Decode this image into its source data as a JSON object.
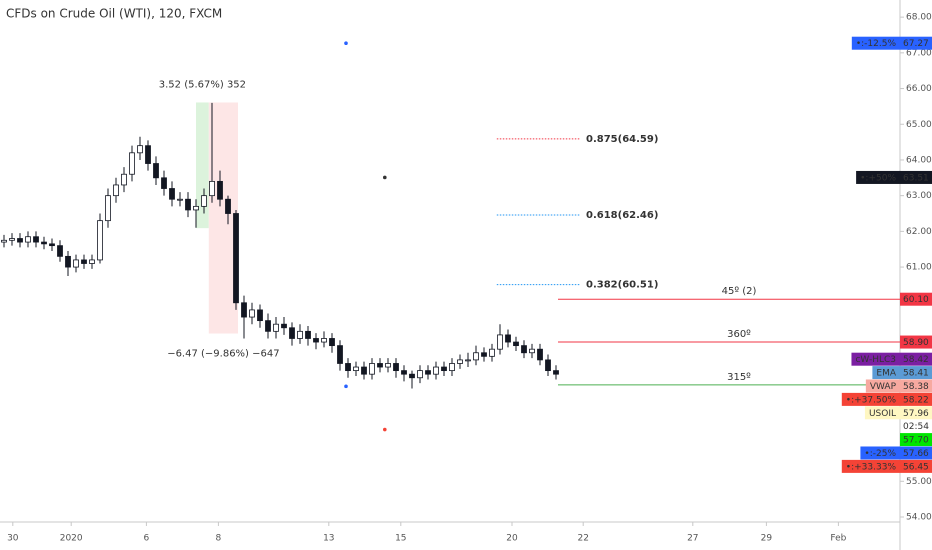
{
  "chart_data": {
    "type": "candlestick",
    "title": "CFDs on Crude Oil (WTI), 120, FXCM",
    "open": [
      61.7,
      61.75,
      61.8,
      61.7,
      61.85,
      61.7,
      61.65,
      61.6,
      61.3,
      61.0,
      61.2,
      61.1,
      61.2,
      62.3,
      63.0,
      63.3,
      63.6,
      64.2,
      64.4,
      63.9,
      63.5,
      63.2,
      62.9,
      62.9,
      62.6,
      62.7,
      63.0,
      63.4,
      62.9,
      62.5,
      60.0,
      59.6,
      59.8,
      59.5,
      59.2,
      59.4,
      59.3,
      59.0,
      59.2,
      59.0,
      58.9,
      59.0,
      58.8,
      58.3,
      58.1,
      58.2,
      58.0,
      58.3,
      58.2,
      58.3,
      58.1,
      58.0,
      57.9,
      58.1,
      58.0,
      58.2,
      58.1,
      58.3,
      58.4,
      58.4,
      58.6,
      58.5,
      58.7,
      59.1,
      58.9,
      58.8,
      58.6,
      58.7,
      58.4,
      58.1
    ],
    "high": [
      61.9,
      61.95,
      61.95,
      62.0,
      62.0,
      61.85,
      61.8,
      61.75,
      61.45,
      61.35,
      61.35,
      61.35,
      62.5,
      63.2,
      63.5,
      63.8,
      64.4,
      64.65,
      64.55,
      64.1,
      63.7,
      63.4,
      63.1,
      63.1,
      62.9,
      63.2,
      65.6,
      63.7,
      63.0,
      62.6,
      60.2,
      60.0,
      59.95,
      59.7,
      59.6,
      59.6,
      59.45,
      59.4,
      59.35,
      59.15,
      59.2,
      59.15,
      58.95,
      58.45,
      58.35,
      58.35,
      58.45,
      58.45,
      58.45,
      58.45,
      58.25,
      58.1,
      58.25,
      58.25,
      58.35,
      58.35,
      58.45,
      58.55,
      58.6,
      58.8,
      58.75,
      58.85,
      59.4,
      59.25,
      59.05,
      58.95,
      58.85,
      58.85,
      58.55,
      58.25
    ],
    "low": [
      61.55,
      61.6,
      61.55,
      61.55,
      61.55,
      61.5,
      61.45,
      61.15,
      60.75,
      60.85,
      60.95,
      60.95,
      61.1,
      62.1,
      62.8,
      63.1,
      63.4,
      64.0,
      63.7,
      63.3,
      63.0,
      62.7,
      62.7,
      62.4,
      62.1,
      62.5,
      62.8,
      62.7,
      62.2,
      59.8,
      59.0,
      59.4,
      59.3,
      59.0,
      59.0,
      59.1,
      58.8,
      58.85,
      58.8,
      58.7,
      58.75,
      58.6,
      58.1,
      57.9,
      57.95,
      57.85,
      57.85,
      58.05,
      58.05,
      57.9,
      57.8,
      57.6,
      57.75,
      57.85,
      57.85,
      57.95,
      57.95,
      58.15,
      58.2,
      58.25,
      58.35,
      58.35,
      58.55,
      58.75,
      58.65,
      58.45,
      58.45,
      58.25,
      57.95,
      57.85
    ],
    "close": [
      61.75,
      61.8,
      61.7,
      61.85,
      61.7,
      61.65,
      61.6,
      61.3,
      61.0,
      61.2,
      61.1,
      61.2,
      62.3,
      63.0,
      63.3,
      63.6,
      64.2,
      64.4,
      63.9,
      63.5,
      63.2,
      62.9,
      62.9,
      62.6,
      62.7,
      63.0,
      63.4,
      62.9,
      62.5,
      60.0,
      59.6,
      59.8,
      59.5,
      59.2,
      59.4,
      59.3,
      59.0,
      59.2,
      59.0,
      58.9,
      59.0,
      58.8,
      58.3,
      58.1,
      58.2,
      58.0,
      58.3,
      58.2,
      58.3,
      58.1,
      58.0,
      57.9,
      58.1,
      58.0,
      58.2,
      58.1,
      58.3,
      58.4,
      58.4,
      58.6,
      58.5,
      58.7,
      59.1,
      58.9,
      58.8,
      58.6,
      58.7,
      58.4,
      58.1,
      58.0
    ],
    "xlim": [
      -0.5,
      112
    ],
    "xticks": [
      {
        "value": 1.1,
        "label": "30"
      },
      {
        "value": 8.4,
        "label": "2020"
      },
      {
        "value": 17.8,
        "label": "6"
      },
      {
        "value": 26.8,
        "label": "8"
      },
      {
        "value": 40.6,
        "label": "13"
      },
      {
        "value": 49.6,
        "label": "15"
      },
      {
        "value": 63.5,
        "label": "20"
      },
      {
        "value": 72.4,
        "label": "22"
      },
      {
        "value": 86.1,
        "label": "27"
      },
      {
        "value": 95.3,
        "label": "29"
      },
      {
        "value": 104.3,
        "label": "Feb"
      }
    ],
    "ylim": [
      53.86,
      68.48
    ],
    "yticks": [
      {
        "value": 68,
        "label": "68.00"
      },
      {
        "value": 67,
        "label": "67.00"
      },
      {
        "value": 66,
        "label": "66.00"
      },
      {
        "value": 65,
        "label": "65.00"
      },
      {
        "value": 64,
        "label": "64.00"
      },
      {
        "value": 63,
        "label": "63.00"
      },
      {
        "value": 62,
        "label": "62.00"
      },
      {
        "value": 61,
        "label": "61.00"
      },
      {
        "value": 55,
        "label": "55.00"
      },
      {
        "value": 54,
        "label": "54.00"
      }
    ],
    "ranges": [
      {
        "label": "3.52 (5.67%) 352",
        "x": [
          24,
          25.6
        ],
        "from": 62.09,
        "to": 65.61,
        "color": "#dcf3dc"
      },
      {
        "label": "−6.47 (−9.86%) −647",
        "x": [
          25.6,
          29.25
        ],
        "from": 65.61,
        "to": 59.14,
        "color": "#fde6e6"
      }
    ],
    "fib_levels": [
      {
        "label": "0.875(64.59)",
        "value": 64.59,
        "color": "#f23645",
        "x": [
          61.6,
          72
        ]
      },
      {
        "label": "0.618(62.46)",
        "value": 62.46,
        "color": "#2196f3",
        "x": [
          61.6,
          72
        ]
      },
      {
        "label": "0.382(60.51)",
        "value": 60.51,
        "color": "#2196f3",
        "x": [
          61.6,
          72
        ]
      }
    ],
    "levels": [
      {
        "label": "45º (2)",
        "value": 60.1,
        "color": "#f23645",
        "x_start": 69.25
      },
      {
        "label": "360º",
        "value": 58.9,
        "color": "#f23645",
        "x_start": 69.25
      },
      {
        "label": "315º",
        "value": 57.7,
        "color": "#4caf50",
        "x_start": 69.25
      }
    ],
    "points": [
      {
        "x": 42.75,
        "y": 67.27,
        "color": "#2962ff"
      },
      {
        "x": 47.6,
        "y": 63.51,
        "color": "#333333"
      },
      {
        "x": 42.75,
        "y": 57.66,
        "color": "#2962ff"
      },
      {
        "x": 47.6,
        "y": 56.45,
        "color": "#f44336"
      }
    ],
    "price_labels": [
      {
        "name": "•:-12.5%",
        "value": 67.27,
        "label": "67.27",
        "bg": "#2962ff",
        "fg": "#ffffff"
      },
      {
        "name": "•:+50%",
        "value": 63.51,
        "label": "63.51",
        "bg": "#131722",
        "fg": "#ffffff"
      },
      {
        "value": 60.1,
        "label": "60.10",
        "bg": "#f23645",
        "fg": "#ffffff"
      },
      {
        "value": 58.9,
        "label": "58.90",
        "bg": "#f23645",
        "fg": "#ffffff"
      },
      {
        "name": "cW-HLC3",
        "value": 58.42,
        "label": "58.42",
        "bg": "#7b1fa2",
        "fg": "#ffffff"
      },
      {
        "name": "EMA",
        "value": 58.41,
        "label": "58.41",
        "bg": "#5b9bd5",
        "fg": "#ffffff"
      },
      {
        "name": "VWAP",
        "value": 58.38,
        "label": "58.38",
        "bg": "#f7a9a0",
        "fg": "#e65100"
      },
      {
        "name": "•:+37.50%",
        "value": 58.22,
        "label": "58.22",
        "bg": "#f44336",
        "fg": "#ffffff"
      },
      {
        "name": "USOIL",
        "value": 57.96,
        "label": "57.96",
        "bg": "#fff7c2",
        "fg": "#333333"
      },
      {
        "value": 57.7,
        "label": "57.70",
        "bg": "#00e600",
        "fg": "#ffffff"
      },
      {
        "name": "•:-25%",
        "value": 57.66,
        "label": "57.66",
        "bg": "#2962ff",
        "fg": "#ffffff"
      },
      {
        "name": "•:+33.33%",
        "value": 56.45,
        "label": "56.45",
        "bg": "#f44336",
        "fg": "#ffffff"
      }
    ],
    "countdown": "02:54"
  }
}
